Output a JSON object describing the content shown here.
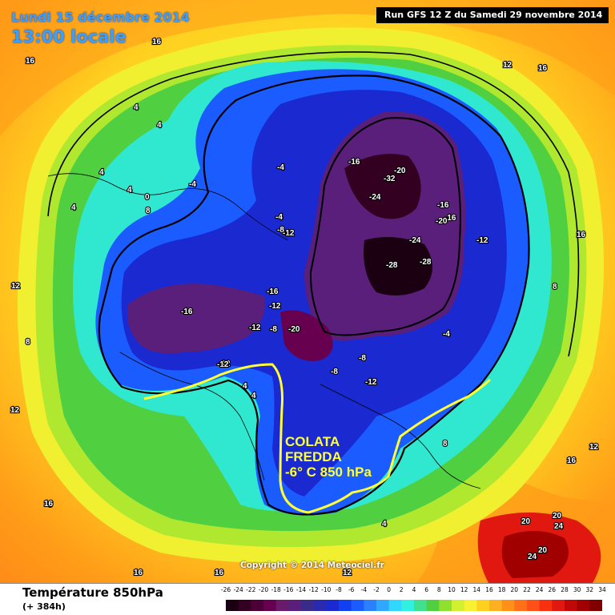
{
  "header": {
    "date_line": "Lundi 15 décembre 2014",
    "time_line": "13:00 locale",
    "run_line": "Run GFS 12 Z du Samedi 29 novembre 2014"
  },
  "footer": {
    "variable": "Température 850hPa",
    "forecast_hour": "(+ 384h)",
    "copyright": "Copyright © 2014 Meteociel.fr"
  },
  "annotation": {
    "line1": "COLATA",
    "line2": "FREDDA",
    "line3": "-6° C 850 hPa",
    "color": "#ffff33"
  },
  "legend": {
    "ticks": [
      "-26",
      "-24",
      "-22",
      "-20",
      "-18",
      "-16",
      "-14",
      "-12",
      "-10",
      "-8",
      "-6",
      "-4",
      "-2",
      "0",
      "2",
      "4",
      "6",
      "8",
      "10",
      "12",
      "14",
      "16",
      "18",
      "20",
      "22",
      "24",
      "26",
      "28",
      "30",
      "32",
      "34"
    ],
    "colors": [
      "#1a0010",
      "#330022",
      "#4d0038",
      "#66004f",
      "#6a1a6a",
      "#5a1f7a",
      "#3a2a8a",
      "#2a2ab0",
      "#1a2ad0",
      "#1040f0",
      "#1a5cff",
      "#2a80ff",
      "#30a8ff",
      "#30d8ff",
      "#30f0e0",
      "#40e090",
      "#50d040",
      "#90e030",
      "#d0f030",
      "#f8f030",
      "#ffd020",
      "#ffb020",
      "#ff9018",
      "#ff7018",
      "#ff5018",
      "#f83010",
      "#e01810",
      "#c00808",
      "#a00000",
      "#800000"
    ]
  },
  "isotherm_labels": [
    {
      "text": "16"
    },
    {
      "text": "16"
    },
    {
      "text": "4"
    },
    {
      "text": "4"
    },
    {
      "text": "4"
    },
    {
      "text": "0"
    },
    {
      "text": "8"
    },
    {
      "text": "4"
    },
    {
      "text": "4"
    },
    {
      "text": "12"
    },
    {
      "text": "8"
    },
    {
      "text": "-4"
    },
    {
      "text": "-4"
    },
    {
      "text": "-4"
    },
    {
      "text": "-8"
    },
    {
      "text": "-12"
    },
    {
      "text": "-16"
    },
    {
      "text": "-20"
    },
    {
      "text": "-32"
    },
    {
      "text": "-24"
    },
    {
      "text": "-16"
    },
    {
      "text": "-16"
    },
    {
      "text": "-20"
    },
    {
      "text": "-24"
    },
    {
      "text": "-28"
    },
    {
      "text": "-28"
    },
    {
      "text": "-12"
    },
    {
      "text": "-16"
    },
    {
      "text": "-16"
    },
    {
      "text": "-12"
    },
    {
      "text": "-12"
    },
    {
      "text": "-8"
    },
    {
      "text": "-20"
    },
    {
      "text": "-12"
    },
    {
      "text": "-8"
    },
    {
      "text": "-8"
    },
    {
      "text": "-12"
    },
    {
      "text": "-4"
    },
    {
      "text": "4"
    },
    {
      "text": "4"
    },
    {
      "text": "8"
    },
    {
      "text": "8"
    },
    {
      "text": "16"
    },
    {
      "text": "12"
    },
    {
      "text": "16"
    },
    {
      "text": "12"
    },
    {
      "text": "8"
    },
    {
      "text": "20"
    },
    {
      "text": "24"
    },
    {
      "text": "20"
    },
    {
      "text": "24"
    },
    {
      "text": "20"
    },
    {
      "text": "4"
    },
    {
      "text": "16"
    },
    {
      "text": "12"
    },
    {
      "text": "16"
    },
    {
      "text": "12"
    },
    {
      "text": "16"
    },
    {
      "text": "16"
    },
    {
      "text": "-12"
    }
  ]
}
